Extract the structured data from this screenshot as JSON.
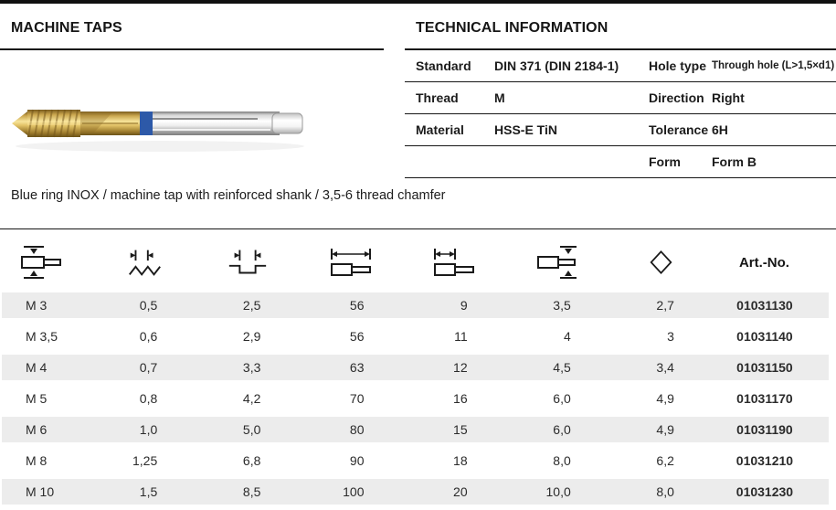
{
  "header": {
    "left_title": "MACHINE TAPS",
    "right_title": "TECHNICAL INFORMATION"
  },
  "technical_info": {
    "rows": [
      {
        "label1": "Standard",
        "value1": "DIN 371 (DIN 2184-1)",
        "label2": "Hole type",
        "value2": "Through hole (L>1,5×d1)"
      },
      {
        "label1": "Thread",
        "value1": "M",
        "label2": "Direction",
        "value2": "Right"
      },
      {
        "label1": "Material",
        "value1": "HSS-E TiN",
        "label2": "Tolerance",
        "value2": "6H"
      },
      {
        "label1": "",
        "value1": "",
        "label2": "Form",
        "value2": "Form B"
      }
    ]
  },
  "description": "Blue ring INOX / machine tap with reinforced shank / 3,5-6 thread chamfer",
  "product_image": {
    "name": "machine-tap-blue-ring-inox",
    "gold_color": "#caa64e",
    "blue_ring_color": "#2d59a8"
  },
  "size_table": {
    "header_icons": [
      "thread-diameter-icon",
      "pitch-icon",
      "core-hole-depth-icon",
      "overall-length-icon",
      "thread-length-icon",
      "shank-diameter-icon",
      "square-drive-icon"
    ],
    "art_no_header": "Art.-No.",
    "stripe_color": "#ececec",
    "rows": [
      [
        "M 3",
        "0,5",
        "2,5",
        "56",
        "9",
        "3,5",
        "2,7",
        "01031130"
      ],
      [
        "M 3,5",
        "0,6",
        "2,9",
        "56",
        "11",
        "4",
        "3",
        "01031140"
      ],
      [
        "M 4",
        "0,7",
        "3,3",
        "63",
        "12",
        "4,5",
        "3,4",
        "01031150"
      ],
      [
        "M 5",
        "0,8",
        "4,2",
        "70",
        "16",
        "6,0",
        "4,9",
        "01031170"
      ],
      [
        "M 6",
        "1,0",
        "5,0",
        "80",
        "15",
        "6,0",
        "4,9",
        "01031190"
      ],
      [
        "M 8",
        "1,25",
        "6,8",
        "90",
        "18",
        "8,0",
        "6,2",
        "01031210"
      ],
      [
        "M 10",
        "1,5",
        "8,5",
        "100",
        "20",
        "10,0",
        "8,0",
        "01031230"
      ]
    ]
  }
}
